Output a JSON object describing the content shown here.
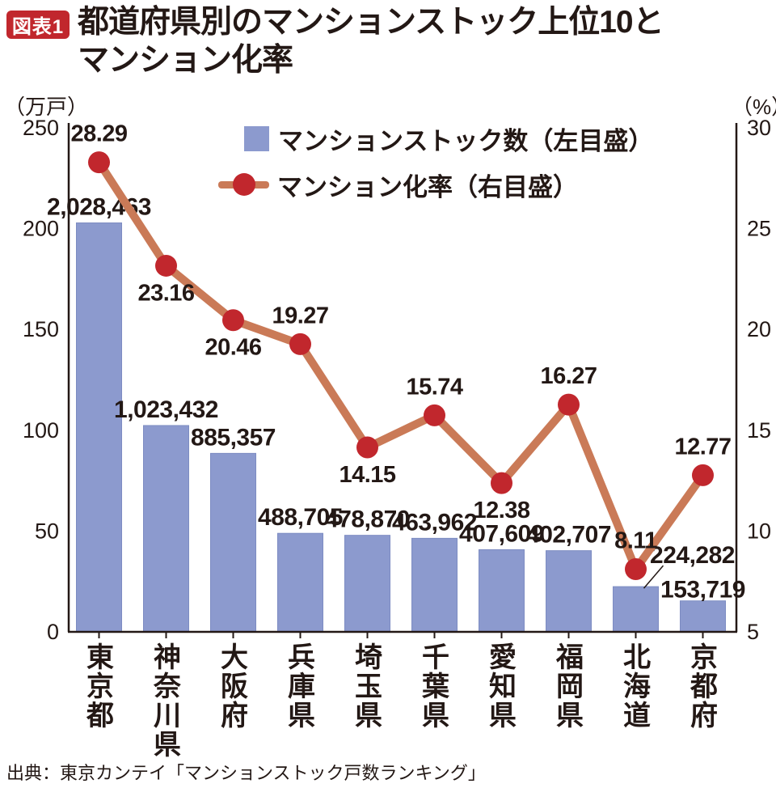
{
  "header": {
    "badge": "図表1",
    "title_line1": "都道府県別のマンションストック上位10と",
    "title_line2": "マンション化率"
  },
  "legend": {
    "stock": "マンションストック数（左目盛）",
    "rate": "マンション化率（右目盛）"
  },
  "source": "出典：東京カンテイ「マンションストック戸数ランキング」",
  "chart_data": {
    "type": "bar+line",
    "categories": [
      "東京都",
      "神奈川県",
      "大阪府",
      "兵庫県",
      "埼玉県",
      "千葉県",
      "愛知県",
      "福岡県",
      "北海道",
      "京都府"
    ],
    "series": [
      {
        "name": "マンションストック数",
        "type": "bar",
        "axis": "left",
        "values": [
          2028463,
          1023432,
          885357,
          488705,
          478870,
          463962,
          407609,
          402707,
          224282,
          153719
        ],
        "value_labels": [
          "2,028,463",
          "1,023,432",
          "885,357",
          "488,705",
          "478,870",
          "463,962",
          "407,609",
          "402,707",
          "224,282",
          "153,719"
        ]
      },
      {
        "name": "マンション化率",
        "type": "line",
        "axis": "right",
        "values": [
          28.29,
          23.16,
          20.46,
          19.27,
          14.15,
          15.74,
          12.38,
          16.27,
          8.11,
          12.77
        ],
        "value_labels": [
          "28.29",
          "23.16",
          "20.46",
          "19.27",
          "14.15",
          "15.74",
          "12.38",
          "16.27",
          "8.11",
          "12.77"
        ]
      }
    ],
    "left_axis": {
      "unit": "（万戸）",
      "ticks": [
        "0",
        "50",
        "100",
        "150",
        "200",
        "250"
      ],
      "range": [
        0,
        250
      ]
    },
    "right_axis": {
      "unit": "（%）",
      "ticks": [
        "5",
        "10",
        "15",
        "20",
        "25",
        "30"
      ],
      "range": [
        5,
        30
      ]
    },
    "gridlines": false,
    "legend_position": "top-center",
    "colors": {
      "bar": "#8c9ace",
      "bar_edge": "#7d8cc2",
      "line": "#ca7a57",
      "marker": "#c1272d",
      "badge": "#c1272d",
      "axis": "#231815",
      "text": "#231815"
    }
  }
}
